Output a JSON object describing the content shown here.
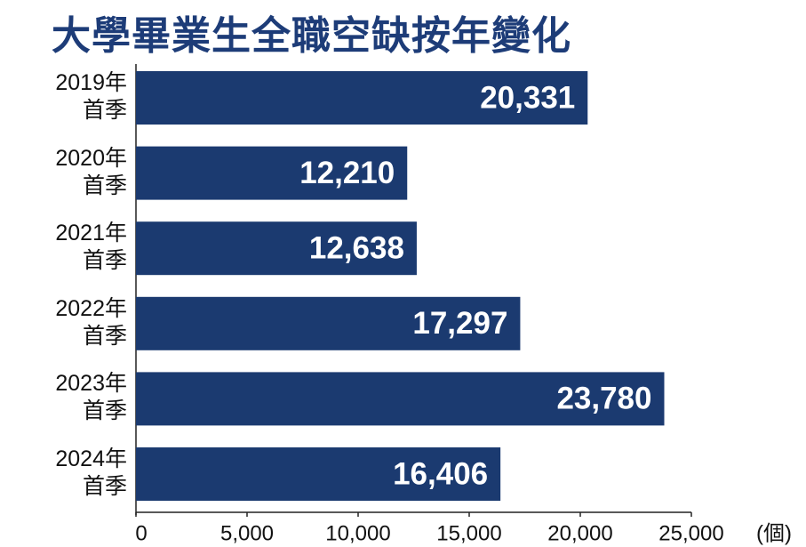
{
  "chart_data": {
    "type": "hbar",
    "title": "大學畢業生全職空缺按年變化",
    "categories": [
      "2019年\n首季",
      "2020年\n首季",
      "2021年\n首季",
      "2022年\n首季",
      "2023年\n首季",
      "2024年\n首季"
    ],
    "values": [
      20331,
      12210,
      12638,
      17297,
      23780,
      16406
    ],
    "value_labels": [
      "20,331",
      "12,210",
      "12,638",
      "17,297",
      "23,780",
      "16,406"
    ],
    "color": "#1b3a70",
    "xlim": [
      0,
      25000
    ],
    "xticks": [
      0,
      {
        "value": 5000,
        "label": "5,000"
      },
      {
        "value": 10000,
        "label": "10,000"
      },
      {
        "value": 15000,
        "label": "15,000"
      },
      {
        "value": 20000,
        "label": "20,000"
      },
      {
        "value": 25000,
        "label": "25,000"
      }
    ],
    "xlabel": "(個)"
  }
}
